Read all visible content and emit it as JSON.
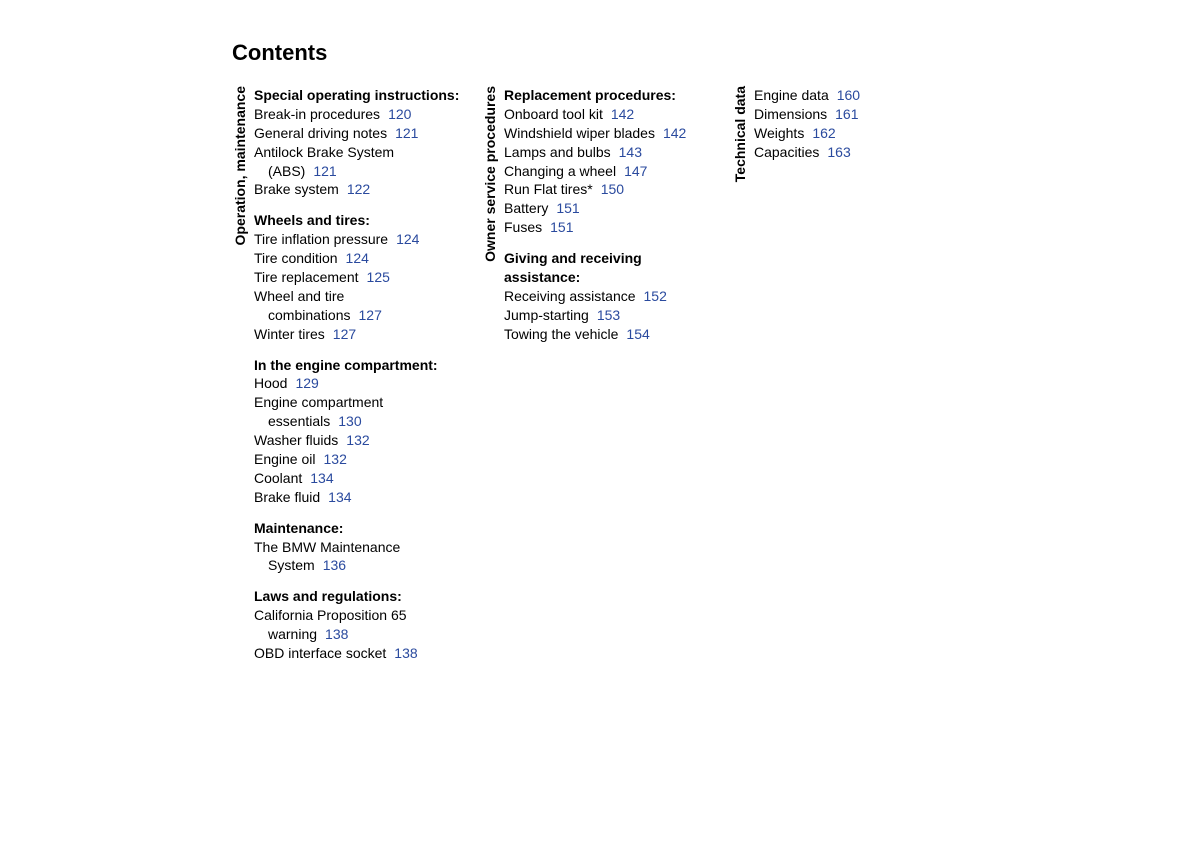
{
  "title": "Contents",
  "link_color": "#2a4a9e",
  "text_color": "#000000",
  "background_color": "#ffffff",
  "title_fontsize": 22,
  "body_fontsize": 14,
  "columns": [
    {
      "label": "Operation, maintenance",
      "groups": [
        {
          "title": "Special operating instructions:",
          "entries": [
            {
              "text": "Break-in procedures",
              "page": "120"
            },
            {
              "text": "General driving notes",
              "page": "121"
            },
            {
              "text": "Antilock Brake System",
              "cont": "(ABS)",
              "page": "121"
            },
            {
              "text": "Brake system",
              "page": "122"
            }
          ]
        },
        {
          "title": "Wheels and tires:",
          "entries": [
            {
              "text": "Tire inflation pressure",
              "page": "124"
            },
            {
              "text": "Tire condition",
              "page": "124"
            },
            {
              "text": "Tire replacement",
              "page": "125"
            },
            {
              "text": "Wheel and tire",
              "cont": "combinations",
              "page": "127"
            },
            {
              "text": "Winter tires",
              "page": "127"
            }
          ]
        },
        {
          "title": "In the engine compartment:",
          "entries": [
            {
              "text": "Hood",
              "page": "129"
            },
            {
              "text": "Engine compartment",
              "cont": "essentials",
              "page": "130"
            },
            {
              "text": "Washer fluids",
              "page": "132"
            },
            {
              "text": "Engine oil",
              "page": "132"
            },
            {
              "text": "Coolant",
              "page": "134"
            },
            {
              "text": "Brake fluid",
              "page": "134"
            }
          ]
        },
        {
          "title": "Maintenance:",
          "entries": [
            {
              "text": "The BMW Maintenance",
              "cont": "System",
              "page": "136"
            }
          ]
        },
        {
          "title": "Laws and regulations:",
          "entries": [
            {
              "text": "California Proposition 65",
              "cont": "warning",
              "page": "138"
            },
            {
              "text": "OBD interface socket",
              "page": "138"
            }
          ]
        }
      ]
    },
    {
      "label": "Owner service procedures",
      "groups": [
        {
          "title": "Replacement procedures:",
          "entries": [
            {
              "text": "Onboard tool kit",
              "page": "142"
            },
            {
              "text": "Windshield wiper blades",
              "page": "142"
            },
            {
              "text": "Lamps and bulbs",
              "page": "143"
            },
            {
              "text": "Changing a wheel",
              "page": "147"
            },
            {
              "text": "Run Flat tires*",
              "page": "150"
            },
            {
              "text": "Battery",
              "page": "151"
            },
            {
              "text": "Fuses",
              "page": "151"
            }
          ]
        },
        {
          "title": "Giving and receiving assistance:",
          "title_line1": "Giving and receiving",
          "title_line2": "assistance:",
          "entries": [
            {
              "text": "Receiving assistance",
              "page": "152"
            },
            {
              "text": "Jump-starting",
              "page": "153"
            },
            {
              "text": "Towing the vehicle",
              "page": "154"
            }
          ]
        }
      ]
    },
    {
      "label": "Technical data",
      "groups": [
        {
          "title": "",
          "entries": [
            {
              "text": "Engine data",
              "page": "160"
            },
            {
              "text": "Dimensions",
              "page": "161"
            },
            {
              "text": "Weights",
              "page": "162"
            },
            {
              "text": "Capacities",
              "page": "163"
            }
          ]
        }
      ]
    }
  ]
}
